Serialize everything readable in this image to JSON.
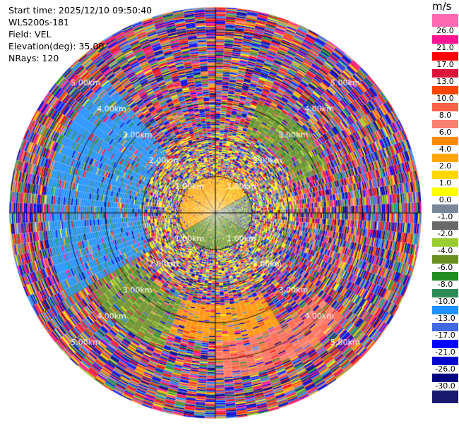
{
  "info": {
    "start_time": "Start time: 2025/12/10 09:50:40",
    "station": "WLS200s-181",
    "field": "Field: VEL",
    "elevation": "Elevation(deg): 35.00",
    "nrays": "NRays: 120"
  },
  "colorbar": {
    "unit": "m/s",
    "ticks": [
      "26.0",
      "21.0",
      "17.0",
      "13.0",
      "10.0",
      "8.0",
      "6.0",
      "4.0",
      "2.0",
      "1.0",
      "0.0",
      "-1.0",
      "-2.0",
      "-4.0",
      "-6.0",
      "-8.0",
      "-10.0",
      "-13.0",
      "-17.0",
      "-21.0",
      "-26.0",
      "-30.0"
    ],
    "colors": [
      "#ff69b4",
      "#ff1493",
      "#ff0000",
      "#dc143c",
      "#ff4500",
      "#ff6347",
      "#fa8072",
      "#ff8c00",
      "#ffa500",
      "#ffd700",
      "#ffff00",
      "#778899",
      "#696969",
      "#9acd32",
      "#6b8e23",
      "#228b22",
      "#2e8b57",
      "#1e90ff",
      "#4169e1",
      "#0000ff",
      "#0000cd",
      "#000080",
      "#191970"
    ]
  },
  "chart_data": {
    "type": "heatmap",
    "projection": "polar-ppi",
    "field": "VEL",
    "units": "m/s",
    "n_rays": 120,
    "elevation_deg": 35.0,
    "range_rings_km": [
      1,
      2,
      3,
      4,
      5
    ],
    "range_ring_labels": [
      "1.00km",
      "2.00km",
      "3.00km",
      "4.00km",
      "5.00km"
    ],
    "max_range_km": 5.6,
    "color_scale_levels": [
      -30,
      -26,
      -21,
      -17,
      -13,
      -10,
      -8,
      -6,
      -4,
      -2,
      -1,
      0,
      1,
      2,
      4,
      6,
      8,
      10,
      13,
      17,
      21,
      26
    ],
    "velocity_regions": [
      {
        "azimuth_deg": [
          300,
          360
        ],
        "range_km": [
          0,
          1.0
        ],
        "value": 3
      },
      {
        "azimuth_deg": [
          0,
          60
        ],
        "range_km": [
          0,
          1.0
        ],
        "value": 2.5
      },
      {
        "azimuth_deg": [
          60,
          120
        ],
        "range_km": [
          0,
          1.0
        ],
        "value": -1.5
      },
      {
        "azimuth_deg": [
          120,
          240
        ],
        "range_km": [
          0,
          1.0
        ],
        "value": -5
      },
      {
        "azimuth_deg": [
          240,
          300
        ],
        "range_km": [
          0,
          1.0
        ],
        "value": 3
      },
      {
        "azimuth_deg": [
          240,
          320
        ],
        "range_km": [
          2.0,
          4.6
        ],
        "value": -11
      },
      {
        "azimuth_deg": [
          200,
          250
        ],
        "range_km": [
          2.5,
          4.0
        ],
        "value": -5
      },
      {
        "azimuth_deg": [
          150,
          200
        ],
        "range_km": [
          2.5,
          3.5
        ],
        "value": 4.5
      },
      {
        "azimuth_deg": [
          130,
          180
        ],
        "range_km": [
          3.5,
          4.5
        ],
        "value": 8.5
      },
      {
        "azimuth_deg": [
          20,
          70
        ],
        "range_km": [
          2.3,
          3.3
        ],
        "value": -5
      }
    ],
    "outer_range_km": [
      3.5,
      5.6
    ],
    "outer_pattern": "noise"
  }
}
